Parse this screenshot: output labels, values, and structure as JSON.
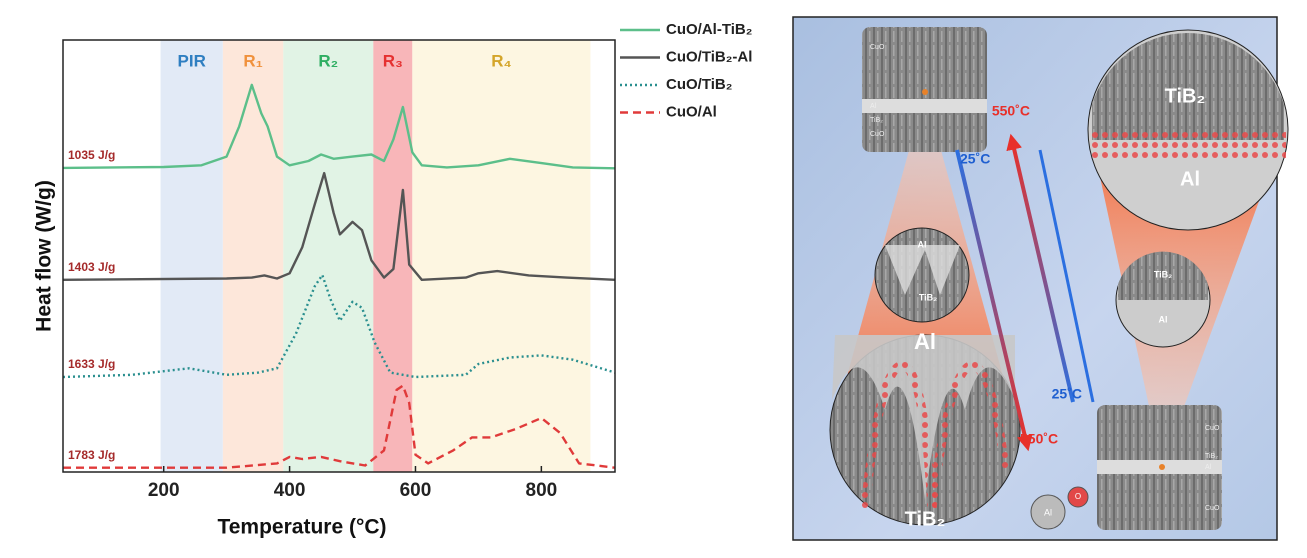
{
  "chart_data": {
    "type": "line",
    "xlabel": "Temperature (°C)",
    "ylabel": "Heat flow (W/g)",
    "xlim": [
      40,
      917
    ],
    "xticks": [
      200,
      400,
      600,
      800
    ],
    "ylim": [
      0,
      100
    ],
    "legend": "upper right",
    "regions": [
      {
        "label": "PIR",
        "range": [
          195,
          294
        ],
        "color": "#2f7fc1",
        "fill": "#dde6f5"
      },
      {
        "label": "R₁",
        "range": [
          294,
          390
        ],
        "color": "#f0913c",
        "fill": "#fde3d4"
      },
      {
        "label": "R₂",
        "range": [
          390,
          533
        ],
        "color": "#2eae62",
        "fill": "#dcf1e0"
      },
      {
        "label": "R₃",
        "range": [
          533,
          595
        ],
        "color": "#e53030",
        "fill": "#f7a9ad"
      },
      {
        "label": "R₄",
        "range": [
          595,
          878
        ],
        "color": "#d4a52a",
        "fill": "#fdf4dc"
      }
    ],
    "series": [
      {
        "name": "CuO/Al-TiB₂",
        "color": "#5cbf8a",
        "dash": "solid",
        "x": [
          40,
          200,
          260,
          300,
          320,
          340,
          355,
          365,
          380,
          400,
          430,
          450,
          470,
          500,
          530,
          550,
          565,
          580,
          595,
          610,
          650,
          700,
          750,
          800,
          850,
          917
        ],
        "values": [
          70.4,
          70.6,
          71,
          73,
          80,
          89.6,
          83,
          80,
          73,
          71,
          72,
          73.5,
          72.5,
          73,
          73.5,
          72,
          77,
          84.5,
          74,
          71,
          70.5,
          71,
          72.5,
          71.5,
          70.5,
          70.3
        ]
      },
      {
        "name": "CuO/TiB₂-Al",
        "color": "#555555",
        "dash": "solid",
        "x": [
          40,
          300,
          340,
          360,
          380,
          400,
          420,
          440,
          455,
          470,
          480,
          500,
          515,
          530,
          550,
          565,
          580,
          590,
          610,
          680,
          700,
          730,
          780,
          840,
          917
        ],
        "values": [
          44.5,
          44.8,
          45,
          45.5,
          44.8,
          46,
          52,
          62,
          69.2,
          60,
          55,
          57.9,
          56,
          49,
          45,
          47,
          65.3,
          48,
          44.5,
          45,
          46,
          46.5,
          45.5,
          45,
          44.5
        ]
      },
      {
        "name": "CuO/TiB₂",
        "color": "#2a8f8f",
        "dash": "dotted",
        "x": [
          40,
          150,
          240,
          300,
          350,
          380,
          410,
          440,
          452,
          465,
          480,
          500,
          515,
          535,
          560,
          600,
          680,
          700,
          750,
          800,
          850,
          917
        ],
        "values": [
          22,
          22.5,
          24,
          22.5,
          23,
          24,
          32,
          43,
          45.6,
          40,
          35,
          39.4,
          38,
          30,
          23,
          22,
          22.5,
          25,
          26.5,
          27,
          26,
          23
        ]
      },
      {
        "name": "CuO/Al",
        "color": "#e03a3a",
        "dash": "dashed",
        "x": [
          40,
          300,
          380,
          400,
          420,
          450,
          480,
          520,
          550,
          570,
          580,
          590,
          600,
          620,
          660,
          690,
          720,
          760,
          800,
          830,
          860,
          917
        ],
        "values": [
          1,
          1,
          2,
          3.5,
          3,
          3.5,
          2.5,
          1.5,
          5,
          19,
          20,
          16,
          4,
          2,
          5,
          8,
          8,
          10,
          12.5,
          9,
          2,
          1
        ]
      }
    ],
    "annotations": [
      "1035 J/g",
      "1403 J/g",
      "1633 J/g",
      "1783 J/g"
    ]
  },
  "diagram": {
    "left": {
      "cuo_top": "CuO",
      "al": "Al",
      "tib2": "TiB₂",
      "cuo_bottom": "CuO",
      "temp_low": "25˚C",
      "temp_high": "550˚C",
      "small_al": "Al",
      "small_tib2": "TiB₂",
      "big_al": "Al",
      "big_tib2": "TiB₂"
    },
    "right": {
      "cuo_top": "CuO",
      "tib2": "TiB₂",
      "al": "Al",
      "cuo_bottom": "CuO",
      "temp_low": "25˚C",
      "temp_high": "550˚C",
      "small_tib2": "TiB₂",
      "small_al": "Al",
      "big_tib2": "TiB₂",
      "big_al": "Al"
    },
    "atoms": {
      "al": "Al",
      "o": "O"
    }
  }
}
